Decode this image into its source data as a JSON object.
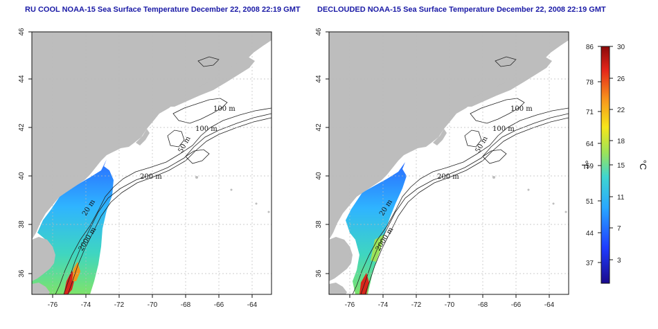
{
  "left_panel": {
    "title": "RU COOL NOAA-15 Sea Surface Temperature December 22, 2008 22:19 GMT"
  },
  "right_panel": {
    "title": "DECLOUDED NOAA-15 Sea Surface Temperature December 22, 2008 22:19 GMT"
  },
  "map": {
    "lon_ticks": [
      "-76",
      "-74",
      "-72",
      "-70",
      "-68",
      "-66",
      "-64"
    ],
    "lat_ticks": [
      "36",
      "38",
      "40",
      "42",
      "44",
      "46"
    ],
    "contour_labels": [
      "100 m",
      "100 m",
      "50 m",
      "200 m",
      "20 m",
      "2000 m"
    ],
    "land_color": "#bdbdbd",
    "grid": true
  },
  "colorbar": {
    "fahrenheit_ticks": [
      "86",
      "78",
      "71",
      "64",
      "59",
      "51",
      "44",
      "37"
    ],
    "celsius_ticks": [
      "30",
      "26",
      "22",
      "18",
      "15",
      "11",
      "7",
      "3"
    ],
    "fahrenheit_unit": "°F",
    "celsius_unit": "°C"
  }
}
